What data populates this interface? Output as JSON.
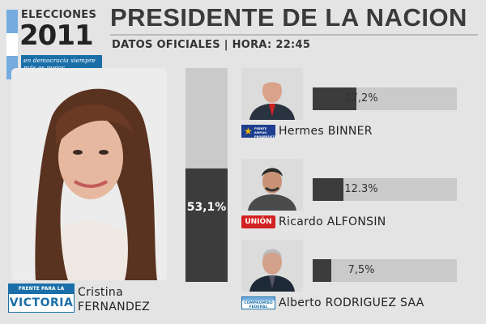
{
  "header": {
    "logo_word": "ELECCIONES",
    "logo_year": "2011",
    "logo_slogan": "en democracia siempre más es mejor.",
    "title": "PRESIDENTE DE LA NACION",
    "subtitle": "DATOS OFICIALES | HORA: 22:45"
  },
  "winner": {
    "first_name": "Cristina",
    "last_name": "FERNANDEZ",
    "party_line1": "FRENTE PARA LA",
    "party_line2": "VICTORIA",
    "pct_label": "53,1%"
  },
  "candidates": [
    {
      "name": "Hermes BINNER",
      "pct_label": "17,2%",
      "party_label": "FRENTE AMPLIO PROGRESISTA",
      "party_icon": "star-icon"
    },
    {
      "name": "Ricardo ALFONSIN",
      "pct_label": "12.3%",
      "party_label": "UNIÓN",
      "party_icon": "union-logo"
    },
    {
      "name": "Alberto RODRIGUEZ SAA",
      "pct_label": "7,5%",
      "party_label": "COMPROMISO FEDERAL",
      "party_icon": "federal-logo"
    }
  ],
  "chart_data": {
    "type": "bar",
    "categories": [
      "Cristina FERNANDEZ",
      "Hermes BINNER",
      "Ricardo ALFONSIN",
      "Alberto RODRIGUEZ SAA"
    ],
    "values": [
      53.1,
      17.2,
      12.3,
      7.5
    ],
    "ylim": [
      0,
      100
    ],
    "colors": {
      "fill": "#3c3c3c",
      "track": "#cacaca"
    }
  }
}
